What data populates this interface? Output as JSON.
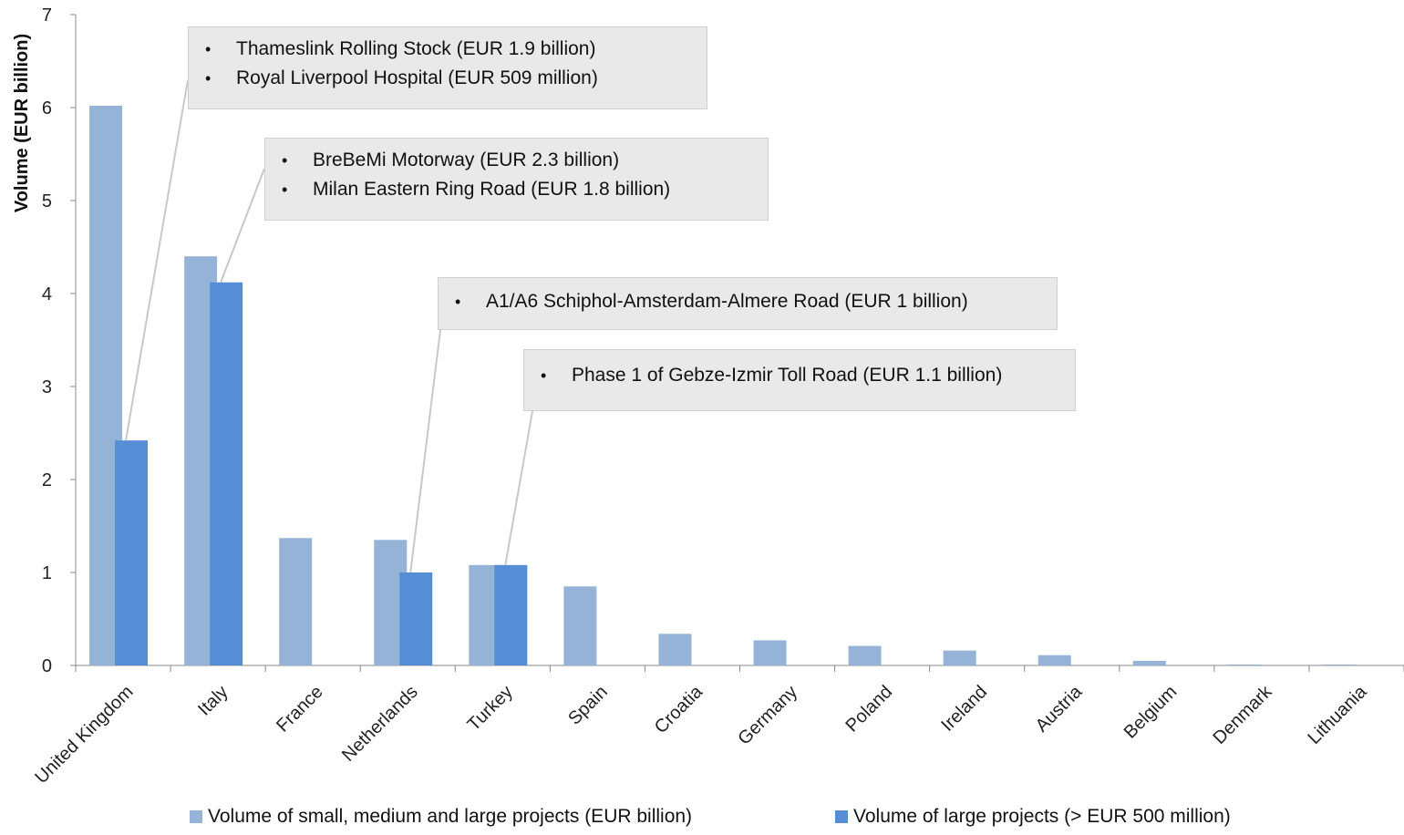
{
  "chart_data": {
    "type": "bar",
    "ylabel": "Volume (EUR billion)",
    "ylim": [
      0,
      7
    ],
    "yticks": [
      0,
      1,
      2,
      3,
      4,
      5,
      6,
      7
    ],
    "grid": false,
    "legend_position": "bottom",
    "categories": [
      "United Kingdom",
      "Italy",
      "France",
      "Netherlands",
      "Turkey",
      "Spain",
      "Croatia",
      "Germany",
      "Poland",
      "Ireland",
      "Austria",
      "Belgium",
      "Denmark",
      "Lithuania"
    ],
    "series": [
      {
        "name": "Volume of small, medium and large projects (EUR billion)",
        "color": "#95b3d7",
        "values": [
          6.02,
          4.4,
          1.37,
          1.35,
          1.08,
          0.85,
          0.34,
          0.27,
          0.21,
          0.16,
          0.11,
          0.05,
          0.01,
          0.01
        ]
      },
      {
        "name": "Volume of large projects (> EUR 500 million)",
        "color": "#558ed5",
        "values": [
          2.42,
          4.12,
          null,
          1.0,
          1.08,
          null,
          null,
          null,
          null,
          null,
          null,
          null,
          null,
          null
        ]
      }
    ],
    "annotations": [
      {
        "category": "United Kingdom",
        "items": [
          "Thameslink Rolling Stock (EUR 1.9 billion)",
          "Royal Liverpool Hospital (EUR 509 million)"
        ]
      },
      {
        "category": "Italy",
        "items": [
          "BreBeMi Motorway (EUR 2.3 billion)",
          "Milan Eastern Ring Road (EUR 1.8 billion)"
        ]
      },
      {
        "category": "Netherlands",
        "items": [
          "A1/A6 Schiphol-Amsterdam-Almere Road (EUR 1 billion)"
        ]
      },
      {
        "category": "Turkey",
        "items": [
          "Phase 1 of Gebze-Izmir Toll Road (EUR 1.1 billion)"
        ]
      }
    ]
  }
}
